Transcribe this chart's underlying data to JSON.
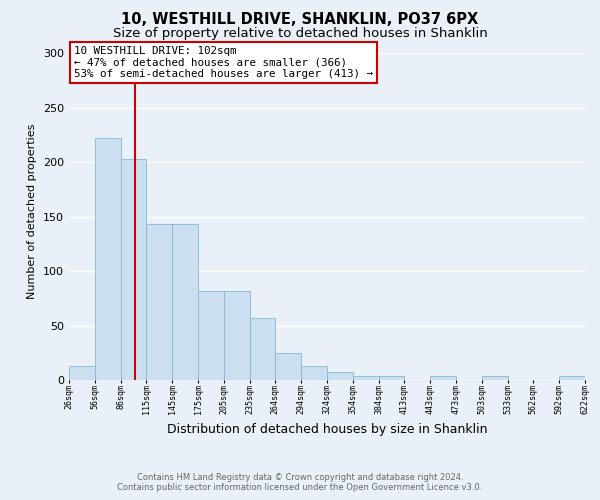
{
  "title": "10, WESTHILL DRIVE, SHANKLIN, PO37 6PX",
  "subtitle": "Size of property relative to detached houses in Shanklin",
  "xlabel": "Distribution of detached houses by size in Shanklin",
  "ylabel": "Number of detached properties",
  "footer_line1": "Contains HM Land Registry data © Crown copyright and database right 2024.",
  "footer_line2": "Contains public sector information licensed under the Open Government Licence v3.0.",
  "annotation_line1": "10 WESTHILL DRIVE: 102sqm",
  "annotation_line2": "← 47% of detached houses are smaller (366)",
  "annotation_line3": "53% of semi-detached houses are larger (413) →",
  "property_size": 102,
  "bin_edges": [
    26,
    56,
    86,
    115,
    145,
    175,
    205,
    235,
    264,
    294,
    324,
    354,
    384,
    413,
    443,
    473,
    503,
    533,
    562,
    592,
    622
  ],
  "bar_values": [
    13,
    222,
    203,
    143,
    143,
    82,
    82,
    57,
    25,
    13,
    7,
    4,
    4,
    0,
    4,
    0,
    4,
    0,
    0,
    4
  ],
  "bar_color": "#ccdff0",
  "bar_edge_color": "#85b8d8",
  "red_line_color": "#cc0000",
  "bg_color": "#eaf0f8",
  "grid_color": "#ffffff",
  "title_fontsize": 10.5,
  "subtitle_fontsize": 9.5,
  "ylim": [
    0,
    310
  ],
  "yticks": [
    0,
    50,
    100,
    150,
    200,
    250,
    300
  ]
}
